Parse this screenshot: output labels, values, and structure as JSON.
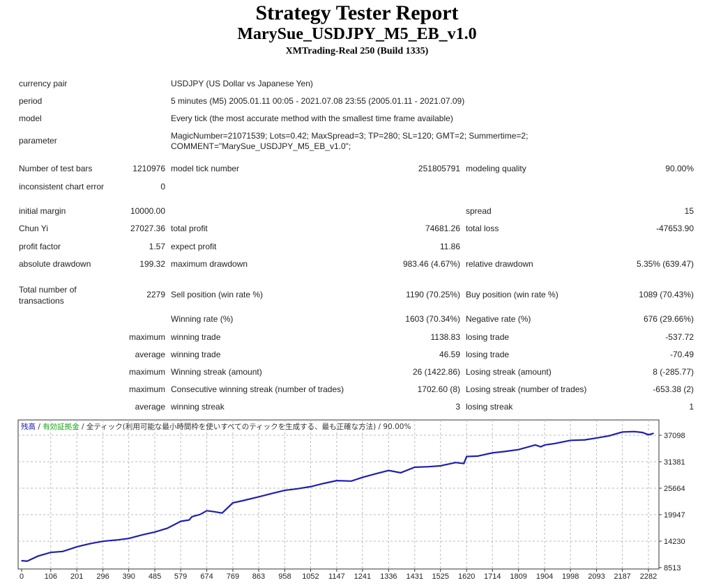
{
  "header": {
    "title": "Strategy Tester Report",
    "subtitle": "MarySue_USDJPY_M5_EB_v1.0",
    "server": "XMTrading-Real 250 (Build 1335)"
  },
  "info": [
    {
      "label": "currency pair",
      "value": "USDJPY (US Dollar vs Japanese Yen)"
    },
    {
      "label": "period",
      "value": "5 minutes (M5) 2005.01.11 00:05 - 2021.07.08 23:55 (2005.01.11 - 2021.07.09)"
    },
    {
      "label": "model",
      "value": "Every tick (the most accurate method with the smallest time frame available)"
    },
    {
      "label": "parameter",
      "value": "MagicNumber=21071539; Lots=0.42; MaxSpread=3; TP=280; SL=120; GMT=2; Summertime=2;",
      "value2": "COMMENT=\"MarySue_USDJPY_M5_EB_v1.0\";"
    }
  ],
  "stats": [
    {
      "l1": "Number of test bars",
      "v1": "1210976",
      "l2": "model tick number",
      "v2": "251805791",
      "l3": "modeling quality",
      "v3": "90.00%"
    },
    {
      "l1": "inconsistent chart error",
      "v1": "0"
    },
    {
      "l1": "initial margin",
      "v1": "10000.00",
      "l3": "spread",
      "v3": "15"
    },
    {
      "l1": "Chun Yi",
      "v1": "27027.36",
      "l2": "total profit",
      "v2": "74681.26",
      "l3": "total loss",
      "v3": "-47653.90"
    },
    {
      "l1": "profit factor",
      "v1": "1.57",
      "l2": "expect profit",
      "v2": "11.86"
    },
    {
      "l1": "absolute drawdown",
      "v1": "199.32",
      "l2": "maximum drawdown",
      "v2": "983.46 (4.67%)",
      "l3": "relative drawdown",
      "v3": "5.35% (639.47)"
    },
    {
      "l1": "Total number of",
      "l1b": "transactions",
      "v1": "2279",
      "l2": "Sell position (win rate %)",
      "v2": "1190 (70.25%)",
      "l3": "Buy position (win rate %)",
      "v3": "1089 (70.43%)"
    },
    {
      "l2": "Winning rate (%)",
      "v2": "1603 (70.34%)",
      "l3": "Negative rate (%)",
      "v3": "676 (29.66%)"
    },
    {
      "v1": "maximum",
      "l2": "winning trade",
      "v2": "1138.83",
      "l3": "losing trade",
      "v3": "-537.72"
    },
    {
      "v1": "average",
      "l2": "winning trade",
      "v2": "46.59",
      "l3": "losing trade",
      "v3": "-70.49"
    },
    {
      "v1": "maximum",
      "l2": "Winning streak (amount)",
      "v2": "26 (1422.86)",
      "l3": "Losing streak (amount)",
      "v3": "8 (-285.77)"
    },
    {
      "v1": "maximum",
      "l2": "Consecutive winning streak (number of trades)",
      "v2": "1702.60 (8)",
      "l3": "Losing streak (number of trades)",
      "v3": "-653.38 (2)"
    },
    {
      "v1": "average",
      "l2": "winning streak",
      "v2": "3",
      "l3": "losing streak",
      "v3": "1"
    }
  ],
  "chart_data": {
    "type": "line",
    "legend": [
      {
        "text": "残高",
        "color": "#1a1aa8"
      },
      {
        "text": " / ",
        "color": "#333333"
      },
      {
        "text": "有効証拠金",
        "color": "#1aa81a"
      },
      {
        "text": " / 全ティック(利用可能な最小時間枠を使いすべてのティックを生成する、最も正確な方法) / 90.00%",
        "color": "#333333"
      }
    ],
    "x_ticks": [
      "0",
      "106",
      "201",
      "296",
      "390",
      "485",
      "579",
      "674",
      "769",
      "863",
      "958",
      "1052",
      "1147",
      "1241",
      "1336",
      "1431",
      "1525",
      "1620",
      "1714",
      "1809",
      "1904",
      "1998",
      "2093",
      "2187",
      "2282"
    ],
    "y_ticks": [
      "37098",
      "31381",
      "25664",
      "19947",
      "14230",
      "8513"
    ],
    "xlim": [
      0,
      2320
    ],
    "ylim": [
      8513,
      40400
    ],
    "grid": true,
    "line_color": "#1f1fb0",
    "series": [
      {
        "x": [
          0,
          20,
          60,
          106,
          150,
          201,
          250,
          296,
          350,
          390,
          440,
          485,
          530,
          579,
          610,
          620,
          650,
          674,
          700,
          730,
          769,
          800,
          863,
          910,
          958,
          1000,
          1052,
          1100,
          1147,
          1200,
          1241,
          1290,
          1336,
          1380,
          1431,
          1480,
          1525,
          1580,
          1610,
          1620,
          1660,
          1714,
          1760,
          1809,
          1870,
          1890,
          1904,
          1940,
          1998,
          2050,
          2093,
          2140,
          2187,
          2230,
          2260,
          2282,
          2300
        ],
        "y": [
          10000,
          9900,
          11000,
          11800,
          12000,
          13000,
          13700,
          14200,
          14500,
          14800,
          15600,
          16200,
          17000,
          18500,
          18800,
          19500,
          20000,
          20800,
          20600,
          20300,
          22500,
          22900,
          23800,
          24500,
          25200,
          25500,
          26000,
          26700,
          27300,
          27200,
          28000,
          28800,
          29500,
          29000,
          30200,
          30300,
          30500,
          31200,
          31000,
          32500,
          32600,
          33300,
          33600,
          34000,
          35000,
          34600,
          35000,
          35300,
          36000,
          36100,
          36500,
          37000,
          37800,
          37900,
          37700,
          37200,
          37500
        ]
      }
    ]
  }
}
